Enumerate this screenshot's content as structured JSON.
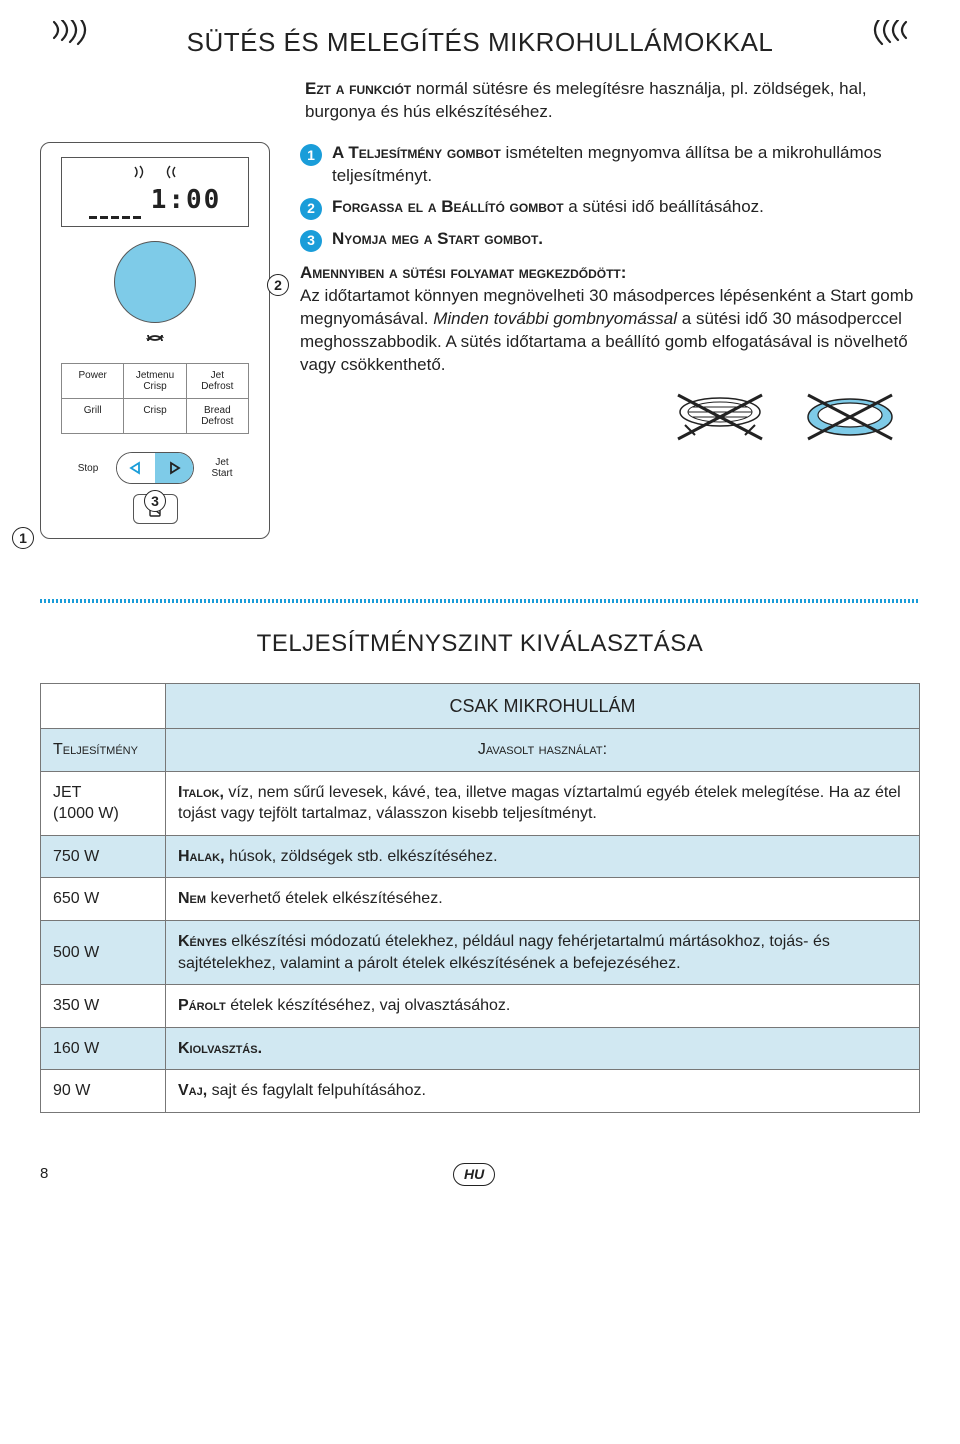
{
  "colors": {
    "accent": "#1a9dd9",
    "accent_light": "#7ecbe8",
    "table_shade": "#d1e8f2",
    "border": "#555555"
  },
  "title": "SÜTÉS ÉS MELEGÍTÉS MIKROHULLÁMOKKAL",
  "intro_bold": "Ezt a funkciót",
  "intro_rest": " normál sütésre és melegítésre használja, pl. zöldségek, hal, burgonya és hús elkészítéséhez.",
  "steps": [
    {
      "n": "1",
      "bold": "A Teljesítmény gombot",
      "rest": " ismételten megnyomva állítsa be a mikrohullámos teljesítményt."
    },
    {
      "n": "2",
      "bold": "Forgassa el a Beállító gombot",
      "rest": " a sütési idő beállításához."
    },
    {
      "n": "3",
      "bold": "Nyomja meg a Start gombot.",
      "rest": ""
    }
  ],
  "after_bold": "Amennyiben a sütési folyamat megkezdődött:",
  "after_text1": "Az időtartamot könnyen megnövelheti 30 másodperces lépésenként a Start gomb megnyomásával. ",
  "after_italic": "Minden további gombnyomással",
  "after_text2": " a sütési idő 30 másodperccel meghosszabbodik. A sütés időtartama a beállító gomb elfogatásával is növelhető vagy csökkenthető.",
  "panel": {
    "display_time": "1:00",
    "buttons": [
      [
        "Power",
        "Jetmenu\nCrisp",
        "Jet\nDefrost"
      ],
      [
        "Grill",
        "Crisp",
        "Bread\nDefrost"
      ]
    ],
    "stop": "Stop",
    "start": "Jet\nStart",
    "callout1": "1",
    "callout2": "2",
    "callout3": "3"
  },
  "section2_title": "TELJESÍTMÉNYSZINT KIVÁLASZTÁSA",
  "table": {
    "header_span": "CSAK MIKROHULLÁM",
    "col1": "Teljesítmény",
    "col2": "Javasolt használat:",
    "rows": [
      {
        "power": "JET\n(1000 W)",
        "bold": "Italok,",
        "rest": " víz, nem sűrű levesek, kávé, tea, illetve magas víztartalmú egyéb ételek melegítése. Ha az étel tojást vagy tejfölt tartalmaz, válasszon kisebb teljesítményt.",
        "shade": false
      },
      {
        "power": "750 W",
        "bold": "Halak,",
        "rest": " húsok, zöldségek stb. elkészítéséhez.",
        "shade": true
      },
      {
        "power": "650 W",
        "bold": "Nem",
        "rest": " keverhető ételek elkészítéséhez.",
        "shade": false
      },
      {
        "power": "500 W",
        "bold": "Kényes",
        "rest": " elkészítési módozatú ételekhez, például nagy fehérjetartalmú mártásokhoz, tojás- és sajtételekhez, valamint a párolt ételek elkészítésének a befejezéséhez.",
        "shade": true
      },
      {
        "power": "350 W",
        "bold": "Párolt",
        "rest": " ételek készítéséhez, vaj olvasztásához.",
        "shade": false
      },
      {
        "power": "160 W",
        "bold": "Kiolvasztás.",
        "rest": "",
        "shade": true
      },
      {
        "power": "90 W",
        "bold": "Vaj,",
        "rest": " sajt és fagylalt felpuhításához.",
        "shade": false
      }
    ]
  },
  "footer": {
    "page": "8",
    "lang": "HU"
  }
}
